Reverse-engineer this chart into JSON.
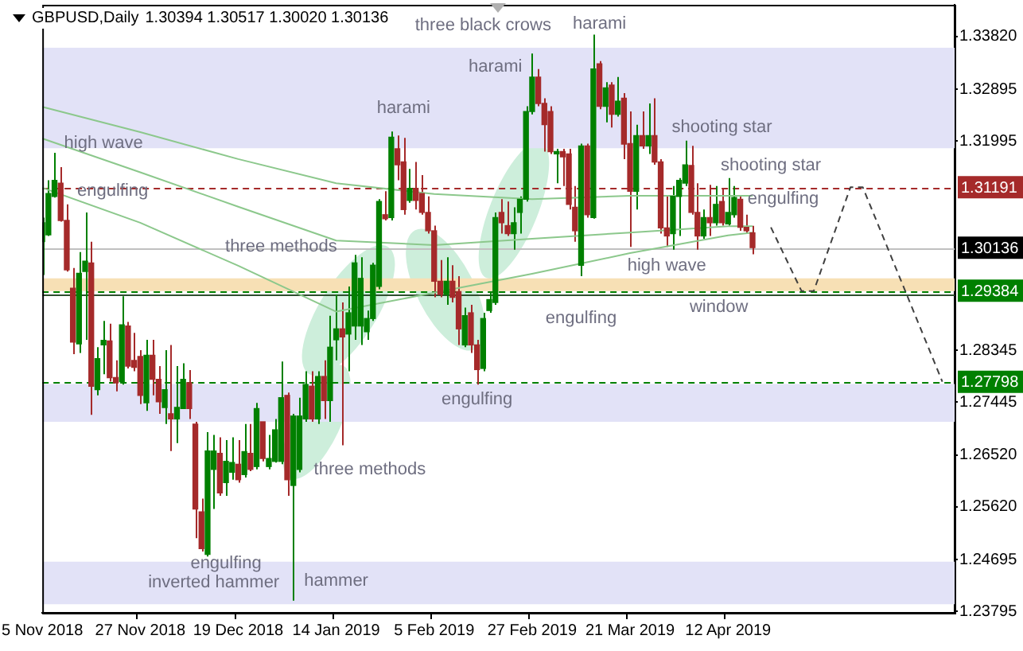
{
  "chart_data": {
    "type": "candlestick",
    "title": "GBPUSD,Daily",
    "subtitle": "1.30394 1.30517 1.30020 1.30136",
    "categories": [
      "5 Nov 2018",
      null,
      null,
      null,
      null,
      null,
      null,
      null,
      null,
      null,
      null,
      null,
      null,
      null,
      null,
      null,
      "27 Nov 2018",
      null,
      null,
      null,
      null,
      null,
      null,
      null,
      null,
      null,
      null,
      null,
      null,
      null,
      null,
      null,
      "19 Dec 2018",
      null,
      null,
      null,
      null,
      null,
      null,
      null,
      null,
      null,
      null,
      null,
      null,
      null,
      null,
      null,
      "14 Jan 2019",
      null,
      null,
      null,
      null,
      null,
      null,
      null,
      null,
      null,
      null,
      null,
      null,
      null,
      null,
      null,
      "5 Feb 2019",
      null,
      null,
      null,
      null,
      null,
      null,
      null,
      null,
      null,
      null,
      null,
      null,
      null,
      null,
      null,
      "27 Feb 2019",
      null,
      null,
      null,
      null,
      null,
      null,
      null,
      null,
      null,
      null,
      null,
      null,
      null,
      null,
      null,
      "21 Mar 2019",
      null,
      null,
      null,
      null,
      null,
      null,
      null,
      null,
      null,
      null,
      null,
      null,
      null,
      null,
      null,
      "12 Apr 2019",
      null,
      null,
      null,
      null,
      null,
      null,
      null,
      null,
      null,
      null,
      null,
      null,
      null,
      null,
      null,
      null,
      null,
      null,
      null,
      null,
      null,
      null,
      null,
      null,
      null,
      null,
      null,
      null,
      null,
      null,
      null,
      null,
      null,
      null,
      null,
      null,
      null
    ],
    "ohlc": [
      [
        1.3024,
        1.3066,
        1.2966,
        1.3057
      ],
      [
        1.3036,
        1.3131,
        1.3034,
        1.3108
      ],
      [
        1.3103,
        1.3179,
        1.3101,
        1.3131
      ],
      [
        1.3126,
        1.3154,
        1.3059,
        1.3061
      ],
      [
        1.3061,
        1.3089,
        1.2972,
        1.2975
      ],
      [
        1.2943,
        1.2978,
        1.2828,
        1.2849
      ],
      [
        1.2846,
        1.3006,
        1.283,
        1.2969
      ],
      [
        1.2972,
        1.3075,
        1.2853,
        1.299
      ],
      [
        1.2987,
        1.3024,
        1.2722,
        1.2772
      ],
      [
        1.2766,
        1.284,
        1.2756,
        1.282
      ],
      [
        1.2844,
        1.2886,
        1.2793,
        1.2852
      ],
      [
        1.2851,
        1.2881,
        1.278,
        1.2787
      ],
      [
        1.2787,
        1.2817,
        1.2763,
        1.2778
      ],
      [
        1.278,
        1.2929,
        1.2775,
        1.2879
      ],
      [
        1.2877,
        1.2884,
        1.2803,
        1.2807
      ],
      [
        1.2817,
        1.2865,
        1.2798,
        1.2805
      ],
      [
        1.2824,
        1.2835,
        1.2741,
        1.2756
      ],
      [
        1.2743,
        1.2853,
        1.2729,
        1.2826
      ],
      [
        1.2826,
        1.2853,
        1.2756,
        1.2784
      ],
      [
        1.2784,
        1.2807,
        1.2724,
        1.2745
      ],
      [
        1.2735,
        1.2835,
        1.2706,
        1.2766
      ],
      [
        1.2724,
        1.2844,
        1.2659,
        1.2715
      ],
      [
        1.2715,
        1.2807,
        1.2673,
        1.2735
      ],
      [
        1.2733,
        1.2812,
        1.2733,
        1.2784
      ],
      [
        1.2778,
        1.28,
        1.2715,
        1.2733
      ],
      [
        1.2706,
        1.271,
        1.2507,
        1.2558
      ],
      [
        1.2553,
        1.2576,
        1.2484,
        1.2489
      ],
      [
        1.2479,
        1.2692,
        1.2475,
        1.2659
      ],
      [
        1.2627,
        1.2687,
        1.2558,
        1.2659
      ],
      [
        1.2655,
        1.2683,
        1.2581,
        1.2586
      ],
      [
        1.2604,
        1.2678,
        1.2581,
        1.2641
      ],
      [
        1.2622,
        1.2683,
        1.2609,
        1.2639
      ],
      [
        1.2636,
        1.2678,
        1.2604,
        1.2609
      ],
      [
        1.2618,
        1.2706,
        1.2613,
        1.2658
      ],
      [
        1.2655,
        1.2706,
        1.2624,
        1.2627
      ],
      [
        1.2632,
        1.2743,
        1.2627,
        1.2733
      ],
      [
        1.271,
        1.271,
        1.2641,
        1.2646
      ],
      [
        1.2632,
        1.2687,
        1.2627,
        1.2646
      ],
      [
        1.2641,
        1.2715,
        1.2639,
        1.2696
      ],
      [
        1.2641,
        1.2815,
        1.2636,
        1.2752
      ],
      [
        1.2756,
        1.2761,
        1.2581,
        1.2609
      ],
      [
        1.2599,
        1.2724,
        1.2398,
        1.272
      ],
      [
        1.2627,
        1.2752,
        1.2622,
        1.272
      ],
      [
        1.2715,
        1.2798,
        1.271,
        1.2775
      ],
      [
        1.2772,
        1.2798,
        1.271,
        1.2715
      ],
      [
        1.2715,
        1.2798,
        1.2706,
        1.2789
      ],
      [
        1.2789,
        1.2817,
        1.2715,
        1.2747
      ],
      [
        1.2747,
        1.2895,
        1.271,
        1.284
      ],
      [
        1.2853,
        1.2932,
        1.2817,
        1.2872
      ],
      [
        1.2872,
        1.2918,
        1.2669,
        1.2858
      ],
      [
        1.2863,
        1.2946,
        1.2798,
        1.29
      ],
      [
        1.2877,
        1.3001,
        1.2853,
        1.2987
      ],
      [
        1.2877,
        1.2997,
        1.2844,
        1.296
      ],
      [
        1.2867,
        1.2904,
        1.2853,
        1.289
      ],
      [
        1.289,
        1.2987,
        1.2886,
        1.2983
      ],
      [
        1.2946,
        1.3098,
        1.2941,
        1.3094
      ],
      [
        1.3071,
        1.3112,
        1.3061,
        1.3064
      ],
      [
        1.3066,
        1.3216,
        1.3061,
        1.3206
      ],
      [
        1.3186,
        1.3209,
        1.3131,
        1.3158
      ],
      [
        1.3163,
        1.3205,
        1.3071,
        1.308
      ],
      [
        1.3096,
        1.3151,
        1.3092,
        1.3117
      ],
      [
        1.3117,
        1.3163,
        1.308,
        1.3096
      ],
      [
        1.3108,
        1.314,
        1.3071,
        1.3075
      ],
      [
        1.3075,
        1.3103,
        1.3038,
        1.3043
      ],
      [
        1.3043,
        1.3052,
        1.2927,
        1.2955
      ],
      [
        1.2955,
        1.2992,
        1.2927,
        1.2932
      ],
      [
        1.2932,
        1.2997,
        1.2914,
        1.2955
      ],
      [
        1.2955,
        1.2983,
        1.2918,
        1.2927
      ],
      [
        1.2937,
        1.2964,
        1.2844,
        1.2872
      ],
      [
        1.2844,
        1.2909,
        1.284,
        1.2895
      ],
      [
        1.29,
        1.2914,
        1.283,
        1.2844
      ],
      [
        1.2844,
        1.2853,
        1.2775,
        1.2801
      ],
      [
        1.2803,
        1.29,
        1.2798,
        1.289
      ],
      [
        1.2904,
        1.2937,
        1.29,
        1.2923
      ],
      [
        1.2918,
        1.3075,
        1.2914,
        1.3066
      ],
      [
        1.3075,
        1.3098,
        1.3038,
        1.3057
      ],
      [
        1.3052,
        1.3094,
        1.3034,
        1.3038
      ],
      [
        1.3038,
        1.3084,
        1.301,
        1.3057
      ],
      [
        1.3075,
        1.3103,
        1.3038,
        1.3098
      ],
      [
        1.3098,
        1.326,
        1.3094,
        1.3251
      ],
      [
        1.3251,
        1.3352,
        1.3246,
        1.3311
      ],
      [
        1.3311,
        1.3325,
        1.326,
        1.3265
      ],
      [
        1.3265,
        1.3274,
        1.3181,
        1.3228
      ],
      [
        1.3251,
        1.326,
        1.3177,
        1.3181
      ],
      [
        1.3177,
        1.3186,
        1.3126,
        1.3181
      ],
      [
        1.3181,
        1.3186,
        1.3121,
        1.3172
      ],
      [
        1.3177,
        1.3186,
        1.308,
        1.3089
      ],
      [
        1.3084,
        1.3121,
        1.3024,
        1.3043
      ],
      [
        1.2983,
        1.3195,
        1.2964,
        1.3191
      ],
      [
        1.3191,
        1.3195,
        1.3066,
        1.3071
      ],
      [
        1.3066,
        1.3385,
        1.3064,
        1.3325
      ],
      [
        1.3334,
        1.3339,
        1.3255,
        1.326
      ],
      [
        1.326,
        1.3302,
        1.3232,
        1.3292
      ],
      [
        1.3297,
        1.3302,
        1.3223,
        1.3246
      ],
      [
        1.3246,
        1.3311,
        1.3242,
        1.3269
      ],
      [
        1.3274,
        1.3283,
        1.3168,
        1.3194
      ],
      [
        1.3195,
        1.3251,
        1.3015,
        1.3112
      ],
      [
        1.3112,
        1.3228,
        1.308,
        1.3209
      ],
      [
        1.3209,
        1.3251,
        1.3186,
        1.3191
      ],
      [
        1.3191,
        1.3265,
        1.3177,
        1.3209
      ],
      [
        1.3209,
        1.3274,
        1.3158,
        1.3163
      ],
      [
        1.3163,
        1.3168,
        1.3038,
        1.3048
      ],
      [
        1.3048,
        1.3103,
        1.3015,
        1.3034
      ],
      [
        1.3038,
        1.3121,
        1.301,
        1.3103
      ],
      [
        1.3103,
        1.3135,
        1.3034,
        1.3131
      ],
      [
        1.3126,
        1.32,
        1.3121,
        1.3158
      ],
      [
        1.3157,
        1.3191,
        1.3071,
        1.3075
      ],
      [
        1.3075,
        1.3126,
        1.301,
        1.3034
      ],
      [
        1.3034,
        1.308,
        1.3029,
        1.3066
      ],
      [
        1.3066,
        1.3123,
        1.3034,
        1.3057
      ],
      [
        1.3057,
        1.3121,
        1.3052,
        1.3089
      ],
      [
        1.3094,
        1.3117,
        1.3052,
        1.3057
      ],
      [
        1.3055,
        1.3135,
        1.3052,
        1.3075
      ],
      [
        1.3071,
        1.3121,
        1.3066,
        1.3101
      ],
      [
        1.3098,
        1.3103,
        1.3043,
        1.3049
      ],
      [
        1.3049,
        1.3071,
        1.3038,
        1.3043
      ],
      [
        1.30394,
        1.30517,
        1.3002,
        1.30136
      ],
      null,
      null,
      null,
      null,
      null,
      null,
      null,
      null,
      null,
      null,
      null,
      null,
      null,
      null,
      null,
      null,
      null,
      null,
      null,
      null,
      null,
      null,
      null,
      null,
      null,
      null,
      null,
      null,
      null,
      null,
      null,
      null,
      null
    ],
    "colors": [
      "#008000",
      "#008000",
      "#008000",
      "#a52a2a",
      "#a52a2a",
      "#a52a2a",
      "#008000",
      "#008000",
      "#a52a2a",
      "#008000",
      "#008000",
      "#a52a2a",
      "#a52a2a",
      "#008000",
      "#a52a2a",
      "#a52a2a",
      "#a52a2a",
      "#008000",
      "#a52a2a",
      "#a52a2a",
      "#008000",
      "#a52a2a",
      "#008000",
      "#008000",
      "#a52a2a",
      "#a52a2a",
      "#a52a2a",
      "#008000",
      "#008000",
      "#a52a2a",
      "#008000",
      "#008000",
      "#a52a2a",
      "#008000",
      "#a52a2a",
      "#008000",
      "#a52a2a",
      "#008000",
      "#008000",
      "#008000",
      "#a52a2a",
      "#008000",
      "#008000",
      "#008000",
      "#a52a2a",
      "#008000",
      "#a52a2a",
      "#008000",
      "#008000",
      "#a52a2a",
      "#008000",
      "#008000",
      "#008000",
      "#008000",
      "#008000",
      "#008000",
      "#a52a2a",
      "#008000",
      "#a52a2a",
      "#a52a2a",
      "#008000",
      "#a52a2a",
      "#a52a2a",
      "#a52a2a",
      "#a52a2a",
      "#a52a2a",
      "#008000",
      "#a52a2a",
      "#a52a2a",
      "#008000",
      "#a52a2a",
      "#a52a2a",
      "#008000",
      "#008000",
      "#008000",
      "#a52a2a",
      "#a52a2a",
      "#008000",
      "#008000",
      "#008000",
      "#008000",
      "#a52a2a",
      "#a52a2a",
      "#a52a2a",
      "#008000",
      "#a52a2a",
      "#a52a2a",
      "#a52a2a",
      "#008000",
      "#a52a2a",
      "#008000",
      "#a52a2a",
      "#008000",
      "#a52a2a",
      "#008000",
      "#a52a2a",
      "#a52a2a",
      "#008000",
      "#a52a2a",
      "#008000",
      "#a52a2a",
      "#a52a2a",
      "#a52a2a",
      "#008000",
      "#008000",
      "#008000",
      "#a52a2a",
      "#a52a2a",
      "#008000",
      "#a52a2a",
      "#008000",
      "#a52a2a",
      "#008000",
      "#008000",
      "#a52a2a",
      "#a52a2a",
      "#a52a2a",
      null,
      null,
      null,
      null,
      null,
      null,
      null,
      null,
      null,
      null,
      null,
      null,
      null,
      null,
      null,
      null,
      null,
      null,
      null,
      null,
      null,
      null,
      null,
      null,
      null,
      null,
      null,
      null,
      null,
      null,
      null,
      null,
      null
    ],
    "series": [
      {
        "type": "line",
        "color": "#8cc88c",
        "values": [
          1.3259,
          null,
          null,
          null,
          null,
          null,
          null,
          null,
          null,
          null,
          null,
          null,
          null,
          null,
          null,
          null,
          1.3215,
          null,
          null,
          null,
          null,
          null,
          null,
          null,
          null,
          null,
          null,
          null,
          null,
          null,
          null,
          null,
          1.3168,
          null,
          null,
          null,
          null,
          null,
          null,
          null,
          null,
          null,
          null,
          null,
          null,
          null,
          null,
          null,
          1.3126,
          null,
          null,
          null,
          null,
          null,
          null,
          null,
          null,
          null,
          null,
          null,
          null,
          null,
          null,
          null,
          1.3107,
          null,
          null,
          null,
          null,
          null,
          null,
          null,
          null,
          null,
          null,
          null,
          null,
          null,
          null,
          null,
          1.3098,
          null,
          null,
          null,
          null,
          null,
          null,
          null,
          null,
          null,
          null,
          null,
          null,
          null,
          null,
          null,
          1.3104,
          null,
          null,
          null,
          null,
          null,
          null,
          null,
          null,
          null,
          null,
          null,
          null,
          null,
          null,
          null,
          1.3104,
          null,
          null,
          null,
          1.3104,
          null,
          null,
          null,
          null,
          null,
          null,
          null,
          null,
          null,
          null,
          null,
          null,
          null,
          null,
          null,
          null,
          null,
          null,
          null,
          null,
          null,
          null,
          null,
          null,
          null,
          null,
          null,
          null,
          null,
          null,
          null,
          null,
          null
        ]
      },
      {
        "type": "line",
        "color": "#8cc88c",
        "values": [
          1.3204,
          null,
          null,
          null,
          null,
          null,
          null,
          null,
          null,
          null,
          null,
          null,
          null,
          null,
          null,
          null,
          1.3145,
          null,
          null,
          null,
          null,
          null,
          null,
          null,
          null,
          null,
          null,
          null,
          null,
          null,
          null,
          null,
          1.3085,
          null,
          null,
          null,
          null,
          null,
          null,
          null,
          null,
          null,
          null,
          null,
          null,
          null,
          null,
          null,
          1.3026,
          null,
          null,
          null,
          null,
          null,
          null,
          null,
          null,
          null,
          null,
          null,
          null,
          null,
          null,
          null,
          1.3018,
          null,
          null,
          null,
          null,
          null,
          null,
          null,
          null,
          null,
          null,
          null,
          null,
          null,
          null,
          null,
          1.3029,
          null,
          null,
          null,
          null,
          null,
          null,
          null,
          null,
          null,
          null,
          null,
          null,
          null,
          null,
          null,
          1.304,
          null,
          null,
          null,
          null,
          null,
          null,
          null,
          null,
          null,
          null,
          null,
          null,
          null,
          null,
          null,
          1.3051,
          null,
          null,
          null,
          1.3051,
          null,
          null,
          null,
          null,
          null,
          null,
          null,
          null,
          null,
          null,
          null,
          null,
          null,
          null,
          null,
          null,
          null,
          null,
          null,
          null,
          null,
          null,
          null,
          null,
          null,
          null,
          null,
          null,
          null,
          null,
          null,
          null,
          null
        ]
      },
      {
        "type": "line",
        "color": "#8cc88c",
        "values": [
          1.3118,
          null,
          null,
          null,
          null,
          null,
          null,
          null,
          null,
          null,
          null,
          null,
          null,
          null,
          null,
          null,
          1.3057,
          null,
          null,
          null,
          null,
          null,
          null,
          null,
          null,
          null,
          null,
          null,
          null,
          null,
          null,
          null,
          1.2982,
          null,
          null,
          null,
          null,
          null,
          null,
          null,
          null,
          null,
          null,
          null,
          null,
          null,
          null,
          null,
          1.2902,
          null,
          null,
          null,
          null,
          null,
          null,
          null,
          null,
          null,
          null,
          null,
          null,
          null,
          null,
          null,
          1.2935,
          null,
          null,
          null,
          null,
          null,
          null,
          null,
          null,
          null,
          null,
          null,
          null,
          null,
          null,
          null,
          1.2968,
          null,
          null,
          null,
          null,
          null,
          null,
          null,
          null,
          null,
          null,
          null,
          null,
          null,
          null,
          null,
          1.3004,
          null,
          null,
          null,
          null,
          null,
          null,
          null,
          null,
          null,
          null,
          null,
          null,
          null,
          null,
          null,
          1.3035,
          null,
          null,
          null,
          1.304,
          null,
          null,
          null,
          null,
          null,
          null,
          null,
          null,
          null,
          null,
          null,
          null,
          null,
          null,
          null,
          null,
          null,
          null,
          null,
          null,
          null,
          null,
          null,
          null,
          null,
          null,
          null,
          null,
          null,
          null,
          null,
          null,
          null
        ]
      },
      {
        "type": "line",
        "color": "#404040",
        "line_style": "dashed",
        "values": [
          null,
          null,
          null,
          null,
          null,
          null,
          null,
          null,
          null,
          null,
          null,
          null,
          null,
          null,
          null,
          null,
          null,
          null,
          null,
          null,
          null,
          null,
          null,
          null,
          null,
          null,
          null,
          null,
          null,
          null,
          null,
          null,
          null,
          null,
          null,
          null,
          null,
          null,
          null,
          null,
          null,
          null,
          null,
          null,
          null,
          null,
          null,
          null,
          null,
          null,
          null,
          null,
          null,
          null,
          null,
          null,
          null,
          null,
          null,
          null,
          null,
          null,
          null,
          null,
          null,
          null,
          null,
          null,
          null,
          null,
          null,
          null,
          null,
          null,
          null,
          null,
          null,
          null,
          null,
          null,
          null,
          null,
          null,
          null,
          null,
          null,
          null,
          null,
          null,
          null,
          null,
          null,
          null,
          null,
          null,
          null,
          null,
          null,
          null,
          null,
          null,
          null,
          null,
          null,
          null,
          null,
          null,
          null,
          null,
          null,
          null,
          null,
          null,
          null,
          null,
          null,
          null,
          null,
          null,
          1.3049,
          null,
          null,
          null,
          null,
          1.2938,
          null,
          1.2938,
          null,
          null,
          null,
          null,
          null,
          1.3119,
          null,
          1.3119,
          null,
          null,
          null,
          null,
          null,
          null,
          null,
          null,
          null,
          null,
          null,
          null,
          1.278,
          null,
          null
        ]
      }
    ],
    "ylim": [
      1.2377,
      1.3437
    ],
    "yticks": [
      {
        "value": 1.3382,
        "label": "1.33820"
      },
      {
        "value": 1.32895,
        "label": "1.32895"
      },
      {
        "value": 1.31995,
        "label": "1.31995"
      },
      {
        "value": 1.28345,
        "label": "1.28345"
      },
      {
        "value": 1.27445,
        "label": "1.27445"
      },
      {
        "value": 1.2652,
        "label": "1.26520"
      },
      {
        "value": 1.2562,
        "label": "1.25620"
      },
      {
        "value": 1.24695,
        "label": "1.24695"
      },
      {
        "value": 1.23795,
        "label": "1.23795"
      }
    ],
    "bands": [
      {
        "axis": "y",
        "from": 1.3187,
        "to": 1.3362,
        "color": "#e2e2f7"
      },
      {
        "axis": "y",
        "from": 1.271,
        "to": 1.2776,
        "color": "#e2e2f7"
      },
      {
        "axis": "y",
        "from": 1.2392,
        "to": 1.2466,
        "color": "#e2e2f7"
      },
      {
        "axis": "y",
        "from": 1.2938,
        "to": 1.296,
        "color": "#f7e0b5"
      }
    ],
    "ref_lines": [
      {
        "axis": "y",
        "value": 1.31191,
        "label": "1.31191",
        "color": "#a52a2a",
        "line_style": "dashed"
      },
      {
        "axis": "y",
        "value": 1.30136,
        "label": "1.30136",
        "color": "#c0c0c0",
        "line_style": "solid"
      },
      {
        "axis": "y",
        "value": 1.29384,
        "label": "1.29384",
        "color": "#008000",
        "line_style": "dashed"
      },
      {
        "axis": "y",
        "value": 1.2933,
        "color": "#2f4f2f",
        "line_style": "solid"
      },
      {
        "axis": "y",
        "value": 1.27798,
        "label": "1.27798",
        "color": "#008000",
        "line_style": "dashed"
      }
    ],
    "annotations": [
      "high wave",
      "engulfing",
      "three methods",
      "harami",
      "three black crows",
      "harami",
      "harami",
      "shooting star",
      "shooting star",
      "engulfing",
      "high wave",
      "window",
      "engulfing",
      "engulfing",
      "three methods",
      "engulfing",
      "inverted hammer",
      "hammer"
    ]
  }
}
